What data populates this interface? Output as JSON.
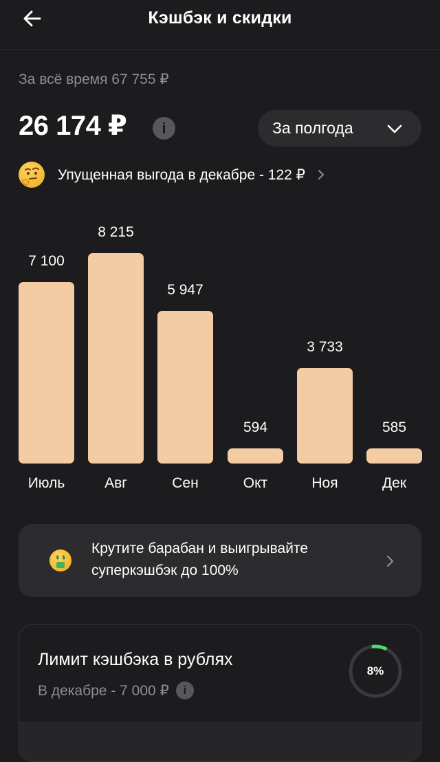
{
  "header": {
    "title": "Кэшбэк и скидки",
    "back_icon": "arrow-left-icon"
  },
  "summary": {
    "all_time": "За всё время 67 755 ₽",
    "total": "26 174 ₽",
    "info_glyph": "i",
    "period": "За полгода"
  },
  "missed": {
    "text": "Упущенная выгода в декабре - 122 ₽"
  },
  "chart_data": {
    "type": "bar",
    "categories": [
      "Июль",
      "Авг",
      "Сен",
      "Окт",
      "Ноя",
      "Дек"
    ],
    "values": [
      7100,
      8215,
      5947,
      594,
      3733,
      585
    ],
    "value_labels": [
      "7 100",
      "8 215",
      "5 947",
      "594",
      "3 733",
      "585"
    ],
    "bar_color": "#f4cca3"
  },
  "promo": {
    "text": "Крутите барабан и выигрывайте суперкэшбэк до 100%"
  },
  "limit": {
    "title": "Лимит кэшбэка в рублях",
    "subtitle": "В декабре - 7 000 ₽",
    "percent_label": "8%",
    "progress": 0.08,
    "progress_color": "#4cd964"
  }
}
